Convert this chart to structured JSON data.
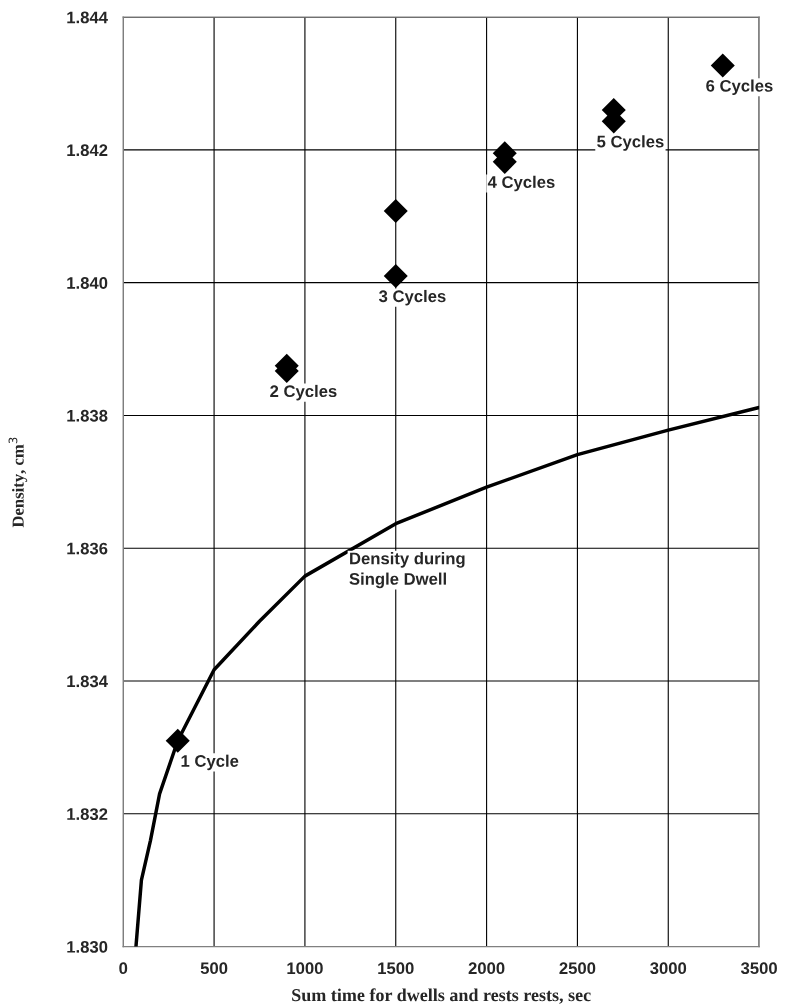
{
  "chart_data": {
    "type": "scatter",
    "xlabel": "Sum time for dwells and rests rests, sec",
    "ylabel": "Density, cm$^{3}$",
    "xlim": [
      0,
      3500
    ],
    "xticks": [
      0,
      500,
      1000,
      1500,
      2000,
      2500,
      3000,
      3500
    ],
    "ylim": [
      1.83,
      1.844
    ],
    "yticks": [
      {
        "value": 1.83,
        "label": "1.830"
      },
      {
        "value": 1.832,
        "label": "1.832"
      },
      {
        "value": 1.834,
        "label": "1.834"
      },
      {
        "value": 1.836,
        "label": "1.836"
      },
      {
        "value": 1.838,
        "label": "1.838"
      },
      {
        "value": 1.84,
        "label": "1.840"
      },
      {
        "value": 1.842,
        "label": "1.842"
      },
      {
        "value": 1.844,
        "label": "1.844"
      }
    ],
    "grid": true,
    "series": [
      {
        "marker": "diamond",
        "color": "#000000",
        "x": [
          300,
          900,
          900,
          1500,
          1500,
          2100,
          2100,
          2700,
          2700,
          3300
        ],
        "values": [
          1.8331,
          1.83875,
          1.83867,
          1.84108,
          1.8401,
          1.84195,
          1.84182,
          1.8426,
          1.84243,
          1.84327
        ]
      },
      {
        "type": "line",
        "marker": "none",
        "line_style": "solid",
        "color": "#000000",
        "x": [
          70,
          100,
          150,
          200,
          300,
          500,
          750,
          1000,
          1500,
          2000,
          2500,
          3000,
          3500
        ],
        "values": [
          1.83,
          1.831,
          1.8316,
          1.8323,
          1.8331,
          1.83417,
          1.8349,
          1.83558,
          1.83637,
          1.83692,
          1.83741,
          1.83778,
          1.83812
        ]
      }
    ],
    "annotations": [
      {
        "text": "1 Cycle",
        "x": 300,
        "y": 1.8331
      },
      {
        "text": "2 Cycles",
        "x": 900,
        "y": 1.83867
      },
      {
        "text": "3 Cycles",
        "x": 1500,
        "y": 1.8401
      },
      {
        "text": "4 Cycles",
        "x": 2100,
        "y": 1.84182
      },
      {
        "text": "5 Cycles",
        "x": 2700,
        "y": 1.84243
      },
      {
        "text": "6 Cycles",
        "x": 3300,
        "y": 1.84327
      },
      "Density during\nSingle Dwell"
    ]
  }
}
